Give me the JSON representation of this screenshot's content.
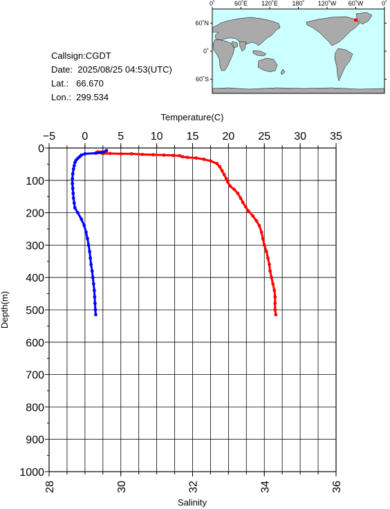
{
  "meta": {
    "callsign": "Callsign:CGDT",
    "date": "Date:  2025/08/25 04:53(UTC)",
    "lat": "Lat.:   66.670",
    "lon": "Lon.:  299.534"
  },
  "map": {
    "top_lon_labels": [
      "0˚",
      "60˚E",
      "120˚E",
      "180˚",
      "120˚W",
      "60˚W",
      "0˚"
    ],
    "lat_labels": [
      "60˚N",
      "0˚",
      "60˚S"
    ],
    "station_marker": {
      "lon": 299.534,
      "lat": 66.67,
      "color": "#ff0000"
    },
    "ocean_color": "#ccffff",
    "land_color": "#aaaaaa"
  },
  "chart_data": {
    "type": "line",
    "title": "",
    "ylabel": "Depth(m)",
    "ylim": [
      0,
      1000
    ],
    "y_ticks": [
      "0",
      "100",
      "200",
      "300",
      "400",
      "500",
      "600",
      "700",
      "800",
      "900",
      "1000"
    ],
    "top_axis": {
      "label": "Temperature(C)",
      "range": [
        -5,
        35
      ],
      "ticks": [
        "−5",
        "0",
        "5",
        "10",
        "15",
        "20",
        "25",
        "30",
        "35"
      ]
    },
    "bottom_axis": {
      "label": "Salinity",
      "range": [
        28,
        36
      ],
      "ticks": [
        "28",
        "30",
        "32",
        "34",
        "36"
      ]
    },
    "grid": true,
    "series": [
      {
        "axis": "temperature",
        "color": "#ff0000",
        "points": [
          [
            2.9,
            10
          ],
          [
            1.8,
            12
          ],
          [
            1.6,
            15
          ],
          [
            2.5,
            17
          ],
          [
            3.5,
            17
          ],
          [
            5.0,
            18
          ],
          [
            6.5,
            18
          ],
          [
            8.0,
            20
          ],
          [
            9.5,
            21
          ],
          [
            11.0,
            22
          ],
          [
            12.3,
            23
          ],
          [
            13.2,
            24
          ],
          [
            13.6,
            27
          ],
          [
            14.3,
            29
          ],
          [
            15.5,
            31
          ],
          [
            16.6,
            35
          ],
          [
            17.5,
            40
          ],
          [
            18.4,
            48
          ],
          [
            18.8,
            58
          ],
          [
            19.1,
            70
          ],
          [
            19.4,
            82
          ],
          [
            19.7,
            95
          ],
          [
            19.9,
            105
          ],
          [
            20.2,
            117
          ],
          [
            20.8,
            128
          ],
          [
            21.3,
            140
          ],
          [
            21.7,
            155
          ],
          [
            22.0,
            168
          ],
          [
            22.4,
            182
          ],
          [
            22.8,
            195
          ],
          [
            23.4,
            210
          ],
          [
            23.9,
            225
          ],
          [
            24.3,
            240
          ],
          [
            24.6,
            260
          ],
          [
            24.8,
            280
          ],
          [
            25.0,
            300
          ],
          [
            25.3,
            320
          ],
          [
            25.5,
            340
          ],
          [
            25.7,
            360
          ],
          [
            25.8,
            380
          ],
          [
            26.0,
            400
          ],
          [
            26.2,
            420
          ],
          [
            26.4,
            440
          ],
          [
            26.5,
            460
          ],
          [
            26.5,
            480
          ],
          [
            26.5,
            500
          ],
          [
            26.6,
            515
          ]
        ]
      },
      {
        "axis": "salinity",
        "color": "#0000ff",
        "points": [
          [
            29.6,
            8
          ],
          [
            29.5,
            13
          ],
          [
            29.3,
            16
          ],
          [
            29.0,
            18
          ],
          [
            28.9,
            22
          ],
          [
            28.85,
            27
          ],
          [
            28.8,
            32
          ],
          [
            28.75,
            38
          ],
          [
            28.72,
            45
          ],
          [
            28.7,
            55
          ],
          [
            28.68,
            65
          ],
          [
            28.66,
            80
          ],
          [
            28.65,
            95
          ],
          [
            28.65,
            110
          ],
          [
            28.66,
            125
          ],
          [
            28.67,
            140
          ],
          [
            28.68,
            155
          ],
          [
            28.7,
            170
          ],
          [
            28.72,
            185
          ],
          [
            28.8,
            200
          ],
          [
            28.9,
            220
          ],
          [
            28.98,
            240
          ],
          [
            29.03,
            260
          ],
          [
            29.07,
            280
          ],
          [
            29.1,
            300
          ],
          [
            29.13,
            320
          ],
          [
            29.15,
            340
          ],
          [
            29.17,
            360
          ],
          [
            29.2,
            380
          ],
          [
            29.22,
            400
          ],
          [
            29.24,
            420
          ],
          [
            29.26,
            440
          ],
          [
            29.27,
            460
          ],
          [
            29.28,
            480
          ],
          [
            29.29,
            500
          ],
          [
            29.3,
            515
          ]
        ]
      }
    ]
  }
}
